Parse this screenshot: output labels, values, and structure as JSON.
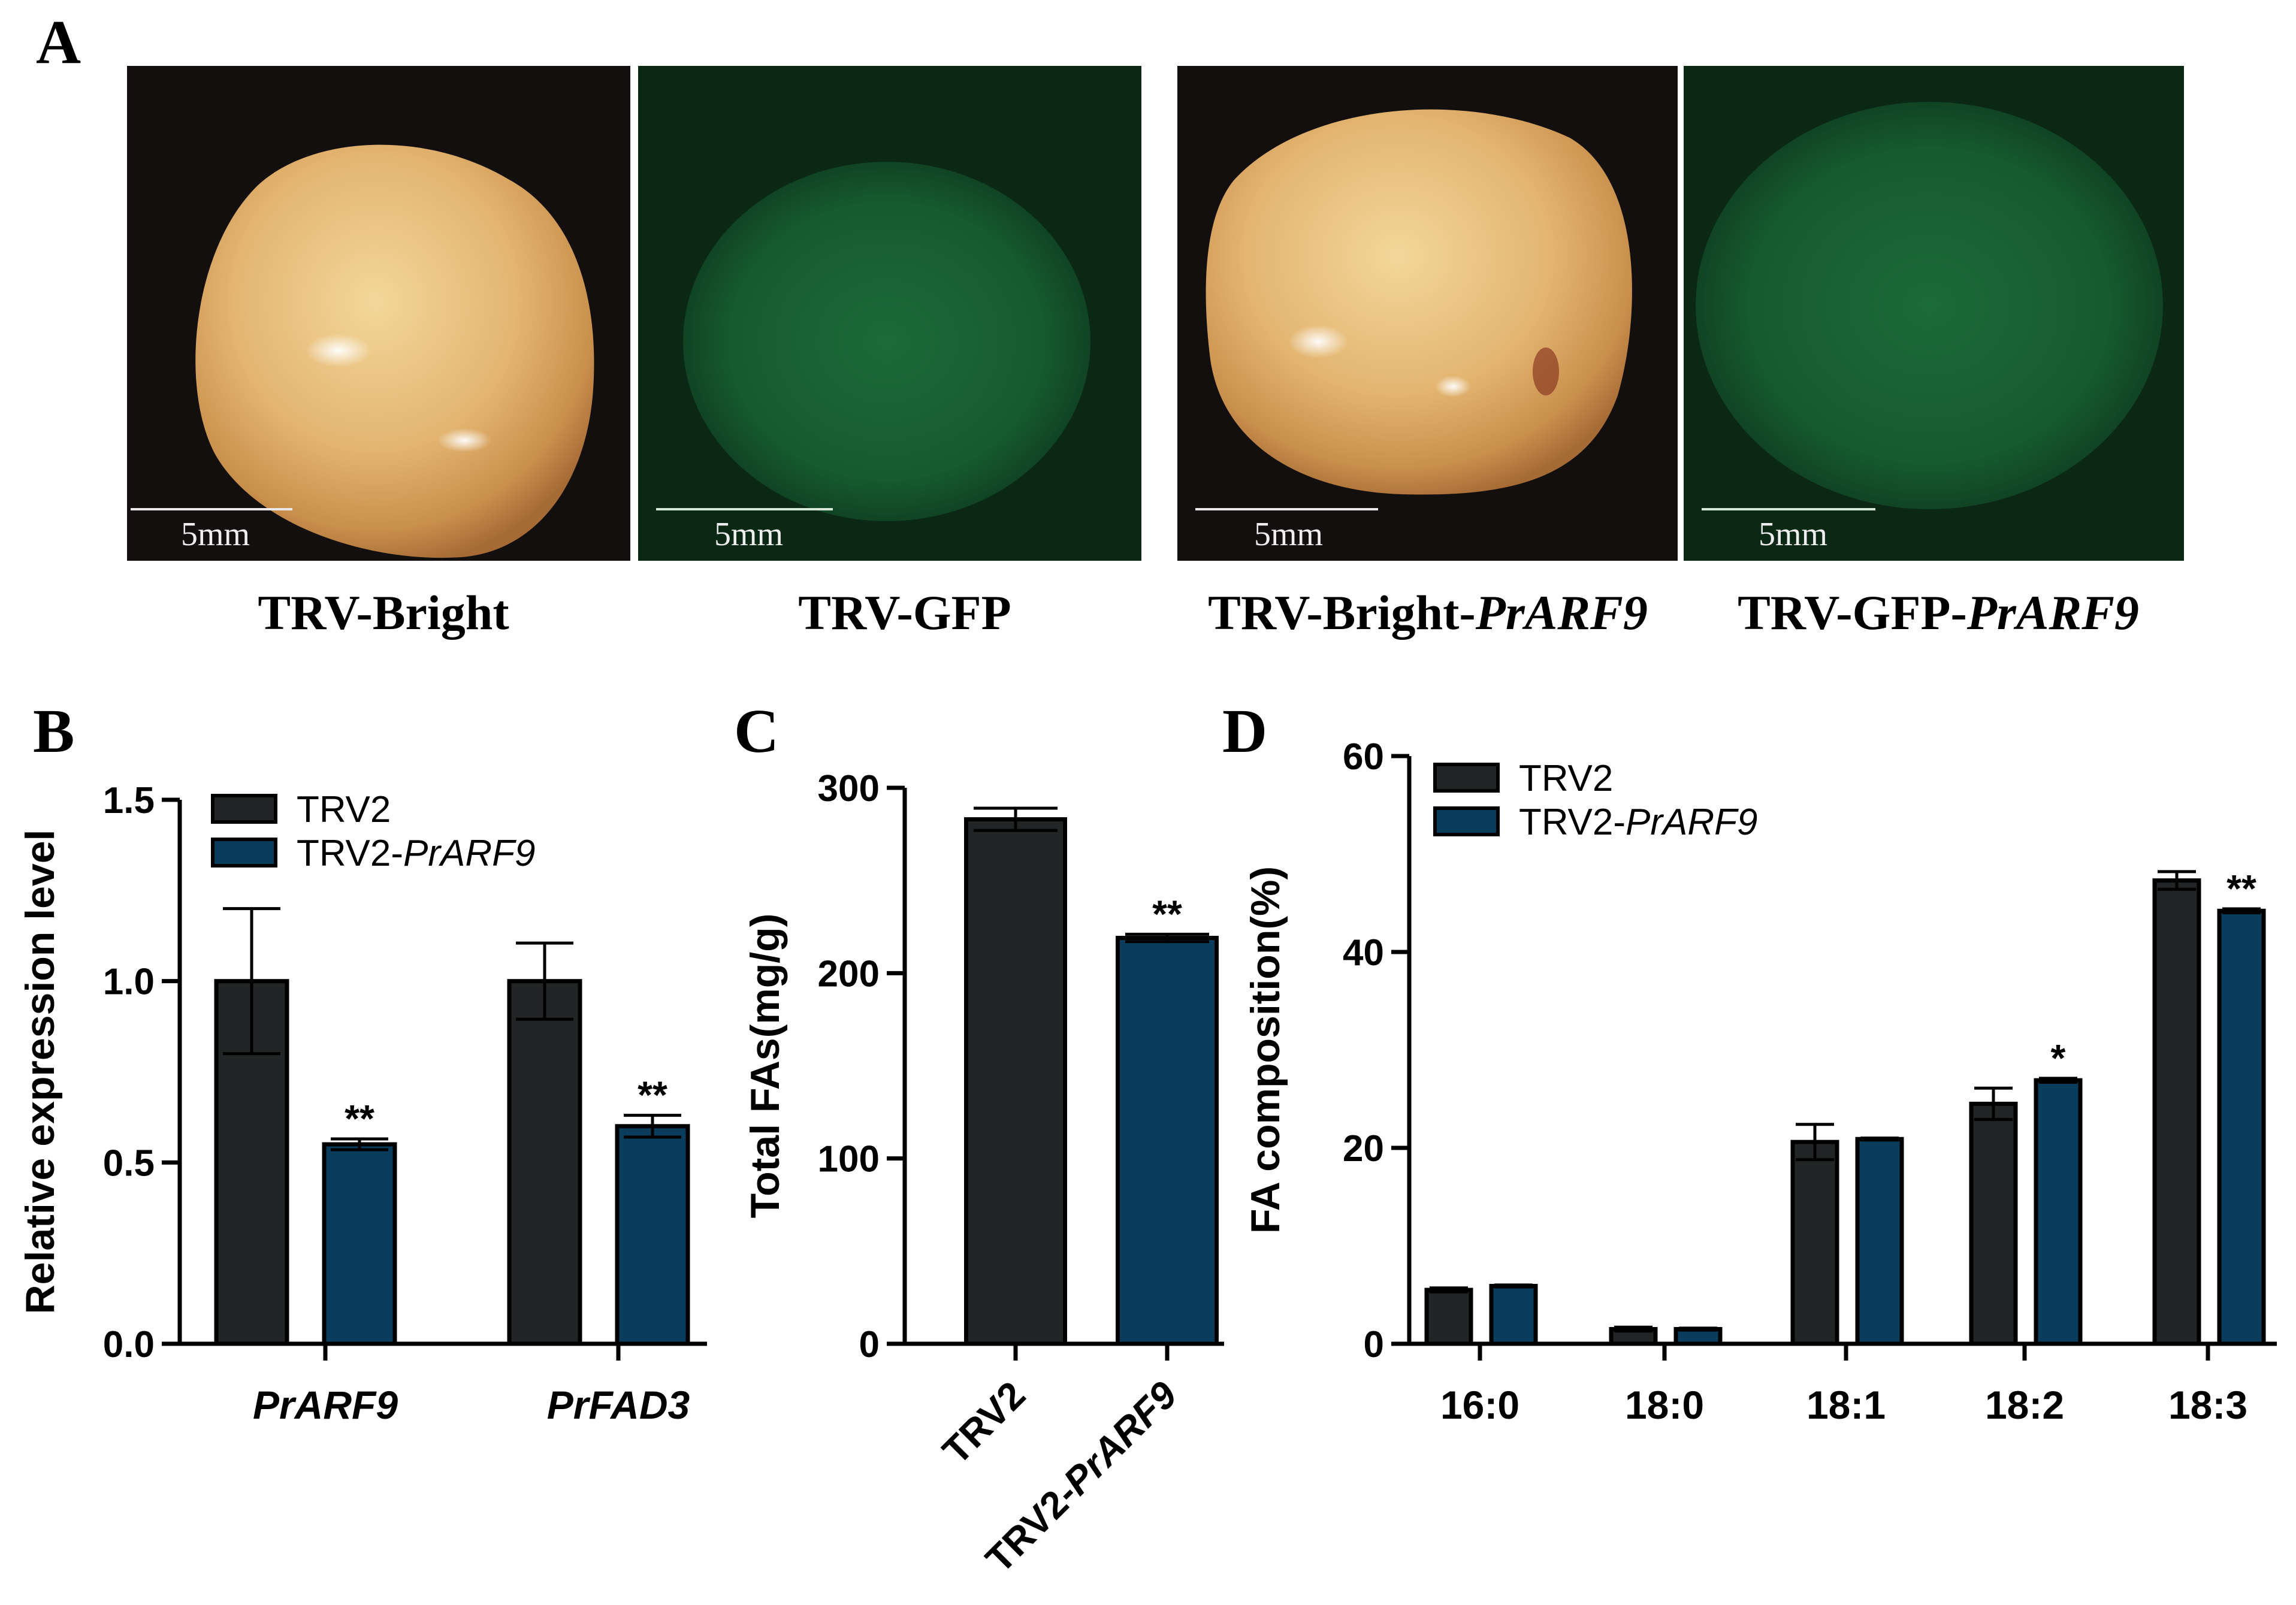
{
  "panels": {
    "A": {
      "letter": "A",
      "images": [
        {
          "caption": "TRV-Bright",
          "caption_italic": "",
          "scale_label": "5mm",
          "kind": "bright"
        },
        {
          "caption": "TRV-GFP",
          "caption_italic": "",
          "scale_label": "5mm",
          "kind": "gfp"
        },
        {
          "caption": "TRV-Bright-",
          "caption_italic": "PrARF9",
          "scale_label": "5mm",
          "kind": "bright"
        },
        {
          "caption": "TRV-GFP-",
          "caption_italic": "PrARF9",
          "scale_label": "5mm",
          "kind": "gfp"
        }
      ]
    },
    "B": {
      "letter": "B"
    },
    "C": {
      "letter": "C"
    },
    "D": {
      "letter": "D"
    }
  },
  "colors": {
    "trv2": "#222525",
    "trv2_prarf9": "#0a3d5c",
    "axis": "#000000",
    "bright_bg": "#130f0f",
    "gfp_bg": "#0a2814"
  },
  "chart_data": [
    {
      "panel": "B",
      "type": "bar",
      "ylabel": "Relative expression level",
      "ylim": [
        0,
        1.5
      ],
      "yticks": [
        "0.0",
        "0.5",
        "1.0",
        "1.5"
      ],
      "categories": [
        "PrARF9",
        "PrFAD3"
      ],
      "series": [
        {
          "name": "TRV2",
          "name_italic": "",
          "values": [
            1.0,
            1.0
          ],
          "errors": [
            0.2,
            0.105
          ],
          "annotations": [
            "",
            ""
          ]
        },
        {
          "name": "TRV2-",
          "name_italic": "PrARF9",
          "values": [
            0.55,
            0.6
          ],
          "errors": [
            0.015,
            0.03
          ],
          "annotations": [
            "**",
            "**"
          ]
        }
      ],
      "legend": "top-left"
    },
    {
      "panel": "C",
      "type": "bar",
      "ylabel": "Total FAs(mg/g)",
      "ylim": [
        0,
        300
      ],
      "yticks": [
        "0",
        "100",
        "200",
        "300"
      ],
      "categories": [
        {
          "plain": "TRV2",
          "italic": ""
        },
        {
          "plain": "TRV2-",
          "italic": "PrARF9"
        }
      ],
      "values": [
        283,
        219
      ],
      "errors": [
        6,
        2
      ],
      "annotations": [
        "",
        "**"
      ]
    },
    {
      "panel": "D",
      "type": "bar",
      "ylabel": "FA composition(%)",
      "ylim": [
        0,
        60
      ],
      "yticks": [
        "0",
        "20",
        "40",
        "60"
      ],
      "categories": [
        "16:0",
        "18:0",
        "18:1",
        "18:2",
        "18:3"
      ],
      "series": [
        {
          "name": "TRV2",
          "name_italic": "",
          "values": [
            5.5,
            1.5,
            20.6,
            24.5,
            47.3
          ],
          "errors": [
            0.2,
            0.2,
            1.8,
            1.6,
            0.9
          ],
          "annotations": [
            "",
            "",
            "",
            "",
            ""
          ]
        },
        {
          "name": "TRV2-",
          "name_italic": "PrARF9",
          "values": [
            5.9,
            1.5,
            20.9,
            26.9,
            44.2
          ],
          "errors": [
            0.1,
            0.1,
            0.1,
            0.2,
            0.2
          ],
          "annotations": [
            "",
            "",
            "",
            "*",
            "**"
          ]
        }
      ],
      "legend": "top-left"
    }
  ]
}
